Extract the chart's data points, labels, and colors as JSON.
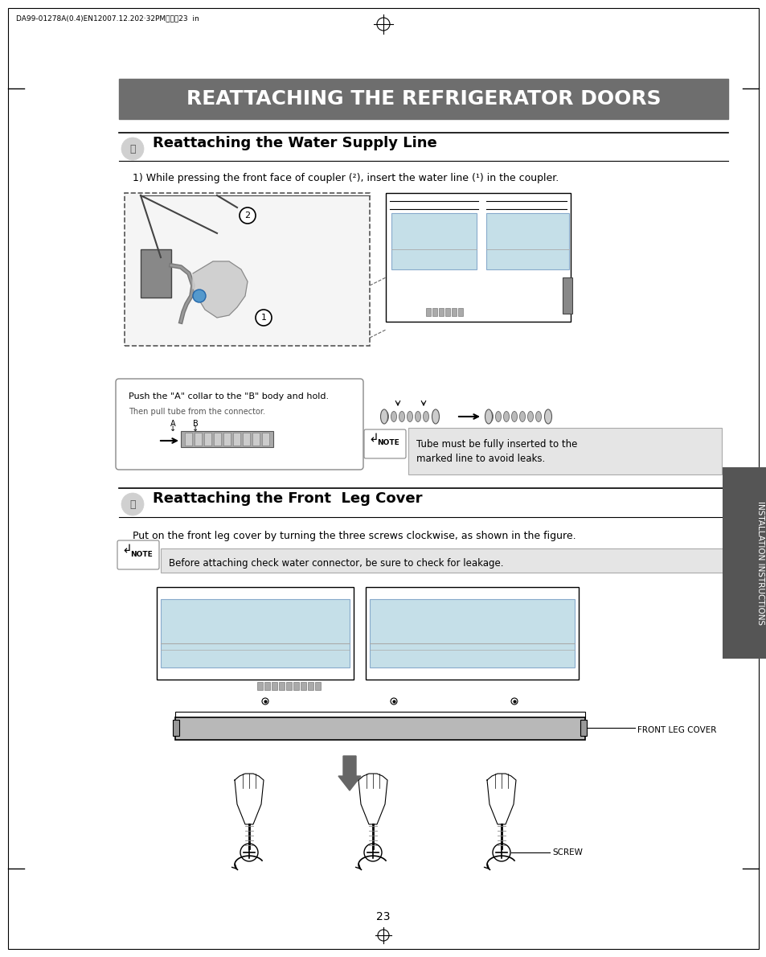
{
  "bg_color": "#ffffff",
  "header_bg": "#6e6e6e",
  "header_text": "REATTACHING THE REFRIGERATOR DOORS",
  "header_text_color": "#ffffff",
  "header_fontsize": 18,
  "section1_title": "Reattaching the Water Supply Line",
  "section2_title": "Reattaching the Front  Leg Cover",
  "section1_body": "1) While pressing the front face of coupler (²), insert the water line (¹) in the coupler.",
  "section2_body": "Put on the front leg cover by turning the three screws clockwise, as shown in the figure.",
  "note1_text": "Push the \"A\" collar to the \"B\" body and hold.",
  "note1_sub": "Then pull tube from the connector.",
  "note2_text": "Tube must be fully inserted to the\nmarked line to avoid leaks.",
  "note3_text": "Before attaching check water connector, be sure to check for leakage.",
  "page_number": "23",
  "side_text": "INSTALLATION INSTRUCTIONS",
  "top_label": "DA99-01278A(0.4)EN12007.12.202·32PM페이직23  in",
  "label_front_leg": "FRONT LEG COVER",
  "label_screw": "SCREW"
}
